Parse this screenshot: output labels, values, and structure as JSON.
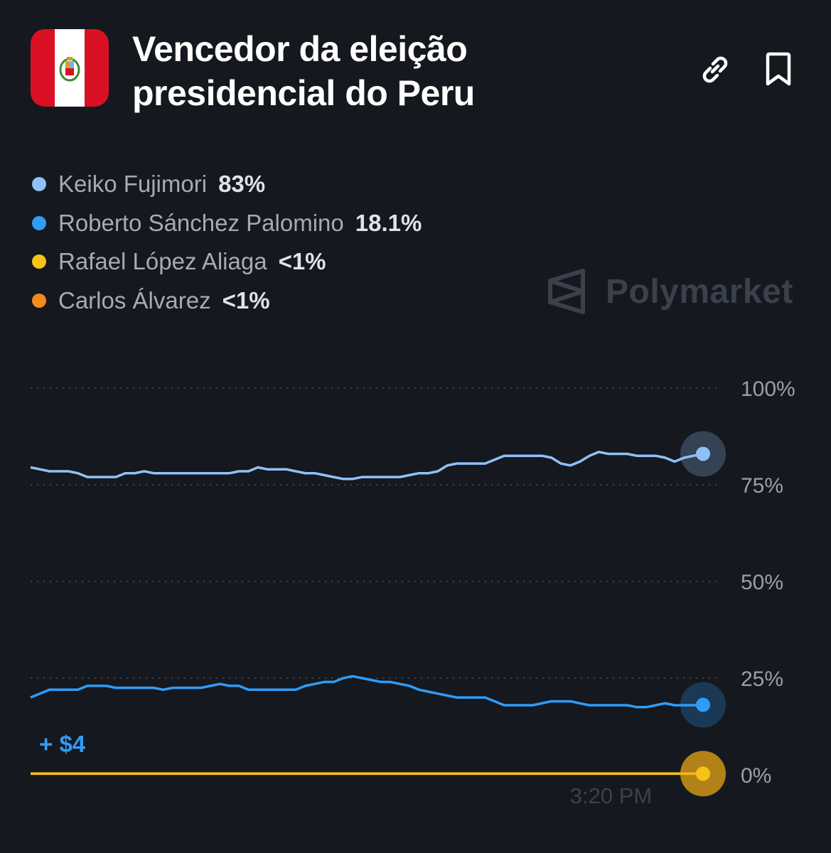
{
  "header": {
    "title_line1": "Vencedor da eleição",
    "title_line2": "presidencial do Peru",
    "flag_icon": "peru-flag-icon",
    "link_icon": "link-icon",
    "bookmark_icon": "bookmark-icon"
  },
  "watermark": {
    "text": "Polymarket",
    "icon": "polymarket-logo-icon"
  },
  "chart_data": {
    "type": "line",
    "title": "Vencedor da eleição presidencial do Peru",
    "ylim": [
      0,
      100
    ],
    "y_ticks": [
      "100%",
      "75%",
      "50%",
      "25%",
      "0%"
    ],
    "y_tick_values": [
      100,
      75,
      50,
      25,
      0
    ],
    "x_label": "3:20 PM",
    "x_label_value": 0.84,
    "annotation": "+ $4",
    "grid": true,
    "legend_position": "top-left",
    "series": [
      {
        "name": "Keiko Fujimori",
        "value_label": "83%",
        "color": "#90c0f9",
        "values": [
          79.5,
          79,
          78.5,
          78.5,
          78.5,
          78,
          77,
          77,
          77,
          77,
          78,
          78,
          78.5,
          78,
          78,
          78,
          78,
          78,
          78,
          78,
          78,
          78,
          78.5,
          78.5,
          79.5,
          79,
          79,
          79,
          78.5,
          78,
          78,
          77.5,
          77,
          76.5,
          76.5,
          77,
          77,
          77,
          77,
          77,
          77.5,
          78,
          78,
          78.5,
          80,
          80.5,
          80.5,
          80.5,
          80.5,
          81.5,
          82.5,
          82.5,
          82.5,
          82.5,
          82.5,
          82,
          80.5,
          80,
          81,
          82.5,
          83.5,
          83,
          83,
          83,
          82.5,
          82.5,
          82.5,
          82,
          81,
          82,
          82.5,
          83
        ]
      },
      {
        "name": "Roberto Sánchez Palomino",
        "value_label": "18.1%",
        "color": "#2f9cf8",
        "values": [
          20,
          21,
          22,
          22,
          22,
          22,
          23,
          23,
          23,
          22.5,
          22.5,
          22.5,
          22.5,
          22.5,
          22,
          22.5,
          22.5,
          22.5,
          22.5,
          23,
          23.5,
          23,
          23,
          22,
          22,
          22,
          22,
          22,
          22,
          23,
          23.5,
          24,
          24,
          25,
          25.5,
          25,
          24.5,
          24,
          24,
          23.5,
          23,
          22,
          21.5,
          21,
          20.5,
          20,
          20,
          20,
          20,
          19,
          18,
          18,
          18,
          18,
          18.5,
          19,
          19,
          19,
          18.5,
          18,
          18,
          18,
          18,
          18,
          17.5,
          17.5,
          18,
          18.5,
          18,
          18,
          18,
          18.1
        ]
      },
      {
        "name": "Rafael López Aliaga",
        "value_label": "<1%",
        "color": "#f7c315",
        "values": [
          0.3,
          0.3,
          0.3,
          0.3,
          0.3,
          0.3,
          0.3,
          0.3,
          0.3,
          0.3,
          0.3,
          0.3
        ]
      },
      {
        "name": "Carlos Álvarez",
        "value_label": "<1%",
        "color": "#f78a1d",
        "values": [
          0.3,
          0.3,
          0.3,
          0.3,
          0.3,
          0.3,
          0.3,
          0.3,
          0.3,
          0.3,
          0.3,
          0.3
        ]
      }
    ]
  }
}
